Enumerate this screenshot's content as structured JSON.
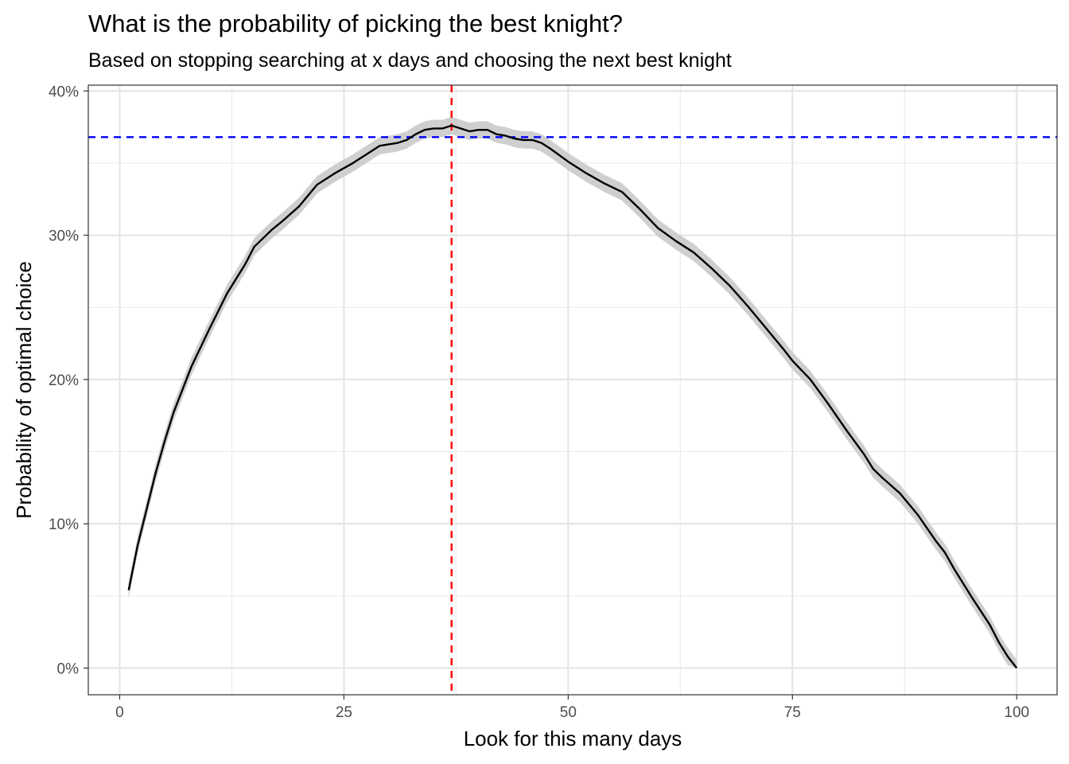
{
  "chart_data": {
    "type": "line",
    "title": "What is the probability of picking the best knight?",
    "subtitle": "Based on stopping searching at x days and choosing the next best knight",
    "xlabel": "Look for this many days",
    "ylabel": "Probability of optimal choice",
    "xlim": [
      -3.5,
      104.5
    ],
    "ylim": [
      -0.0185,
      0.404
    ],
    "x_ticks": [
      0,
      25,
      50,
      75,
      100
    ],
    "x_tick_labels": [
      "0",
      "25",
      "50",
      "75",
      "100"
    ],
    "y_ticks": [
      0,
      0.1,
      0.2,
      0.3,
      0.4
    ],
    "y_tick_labels": [
      "0%",
      "10%",
      "20%",
      "30%",
      "40%"
    ],
    "grid": true,
    "legend": "none",
    "series": [
      {
        "color": "#000000",
        "band_color": "#cccccc",
        "band_halfwidth": 0.006,
        "x": [
          1,
          2,
          3,
          4,
          5,
          6,
          7,
          8,
          9,
          10,
          12,
          14,
          15,
          17,
          18,
          20,
          22,
          24,
          26,
          28,
          29,
          30,
          31,
          32,
          33,
          34,
          35,
          36,
          37,
          38,
          39,
          40,
          41,
          42,
          43,
          44,
          45,
          46,
          47,
          48,
          50,
          52,
          54,
          56,
          57,
          58,
          60,
          62,
          64,
          66,
          68,
          70,
          72,
          74,
          75,
          77,
          79,
          81,
          83,
          84,
          85,
          87,
          89,
          91,
          92,
          93,
          95,
          97,
          98,
          99,
          100
        ],
        "y": [
          0.054,
          0.085,
          0.11,
          0.135,
          0.157,
          0.177,
          0.193,
          0.209,
          0.222,
          0.235,
          0.26,
          0.28,
          0.292,
          0.304,
          0.309,
          0.32,
          0.335,
          0.343,
          0.35,
          0.358,
          0.362,
          0.363,
          0.364,
          0.366,
          0.37,
          0.373,
          0.374,
          0.374,
          0.376,
          0.374,
          0.372,
          0.373,
          0.373,
          0.37,
          0.369,
          0.367,
          0.366,
          0.366,
          0.364,
          0.36,
          0.351,
          0.343,
          0.336,
          0.33,
          0.324,
          0.318,
          0.305,
          0.296,
          0.288,
          0.277,
          0.265,
          0.251,
          0.236,
          0.221,
          0.213,
          0.2,
          0.183,
          0.165,
          0.148,
          0.138,
          0.132,
          0.121,
          0.106,
          0.088,
          0.08,
          0.069,
          0.049,
          0.03,
          0.018,
          0.008,
          0
        ]
      }
    ],
    "reference_lines": [
      {
        "orientation": "horizontal",
        "value": 0.368,
        "color": "#0000ff",
        "style": "dashed"
      },
      {
        "orientation": "vertical",
        "value": 37,
        "color": "#ff0000",
        "style": "dashed"
      }
    ]
  }
}
